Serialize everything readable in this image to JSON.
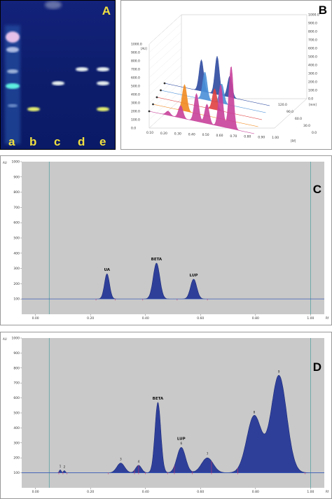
{
  "panels": {
    "A": {
      "label": "A",
      "lanes": [
        "a",
        "b",
        "c",
        "d",
        "e"
      ],
      "band_colors": {
        "white": "#e8f0f0",
        "cyan": "#5ff0e0",
        "yellow": "#e6f070",
        "pink": "#f0b8e8"
      }
    },
    "B": {
      "label": "B",
      "y_ticks": [
        "1000.0",
        "900.0",
        "800.0",
        "700.0",
        "600.0",
        "500.0",
        "400.0",
        "300.0",
        "200.0",
        "100.0",
        "0.0"
      ],
      "y_unit": "[AU]",
      "right_ticks": [
        "1000.0",
        "900.0",
        "800.0",
        "700.0",
        "600.0",
        "500.0",
        "400.0",
        "300.0",
        "200.0",
        "100.0",
        "0.0"
      ],
      "rf_ticks": [
        "0.10",
        "0.20",
        "0.30",
        "0.40",
        "0.50",
        "0.60",
        "0.70",
        "0.80",
        "0.90",
        "1.00"
      ],
      "rf_unit": "[Rf]",
      "track_ticks": [
        "120.0",
        "90.0",
        "60.0",
        "30.0",
        "0.0"
      ],
      "track_unit": "[mm]"
    },
    "C": {
      "label": "C"
    },
    "D": {
      "label": "D"
    }
  },
  "chart_data": [
    {
      "id": "C",
      "type": "area",
      "ylabel": "AU",
      "xlabel": "Rf",
      "ylim": [
        0,
        1000
      ],
      "xlim": [
        -0.05,
        1.05
      ],
      "y_ticks": [
        "1000",
        "900",
        "800",
        "700",
        "600",
        "500",
        "400",
        "300",
        "200",
        "100"
      ],
      "x_ticks": [
        "0.00",
        "0.20",
        "0.40",
        "0.60",
        "0.80",
        "1.00"
      ],
      "x_tick_values": [
        0.0,
        0.2,
        0.4,
        0.6,
        0.8,
        1.0
      ],
      "baseline": 100,
      "peaks": [
        {
          "label": "UA",
          "rf": 0.26,
          "height": 265,
          "width": 0.013
        },
        {
          "label": "BETA",
          "rf": 0.44,
          "height": 335,
          "width": 0.017
        },
        {
          "label": "LUP",
          "rf": 0.575,
          "height": 230,
          "width": 0.016
        }
      ],
      "markers": [
        0.22,
        0.29,
        0.39,
        0.515,
        0.625
      ]
    },
    {
      "id": "D",
      "type": "area",
      "ylabel": "AU",
      "xlabel": "Rf",
      "ylim": [
        0,
        1000
      ],
      "xlim": [
        -0.05,
        1.05
      ],
      "y_ticks": [
        "1000",
        "900",
        "800",
        "700",
        "600",
        "500",
        "400",
        "300",
        "200",
        "100"
      ],
      "x_ticks": [
        "0.00",
        "0.20",
        "0.40",
        "0.60",
        "0.80",
        "1.00"
      ],
      "x_tick_values": [
        0.0,
        0.2,
        0.4,
        0.6,
        0.8,
        1.0
      ],
      "baseline": 100,
      "peaks": [
        {
          "label": "1",
          "rf": 0.09,
          "height": 120,
          "width": 0.005
        },
        {
          "label": "2",
          "rf": 0.105,
          "height": 115,
          "width": 0.005
        },
        {
          "label": "3",
          "rf": 0.31,
          "height": 165,
          "width": 0.02
        },
        {
          "label": "4",
          "rf": 0.375,
          "height": 150,
          "width": 0.015
        },
        {
          "label": "BETA",
          "rf": 0.445,
          "height": 570,
          "width": 0.015
        },
        {
          "label": "6",
          "rf": 0.53,
          "height": 270,
          "width": 0.022
        },
        {
          "label": "7",
          "rf": 0.625,
          "height": 200,
          "width": 0.03
        },
        {
          "label": "8",
          "rf": 0.795,
          "height": 480,
          "width": 0.038
        },
        {
          "label": "9",
          "rf": 0.885,
          "height": 750,
          "width": 0.04
        }
      ],
      "labels_extra": [
        {
          "text": "LUP",
          "rf": 0.53,
          "height": 320
        }
      ],
      "markers": [
        0.085,
        0.1,
        0.115,
        0.265,
        0.36,
        0.375,
        0.4,
        0.48,
        0.505,
        0.57,
        0.64,
        0.735,
        0.98
      ]
    }
  ]
}
